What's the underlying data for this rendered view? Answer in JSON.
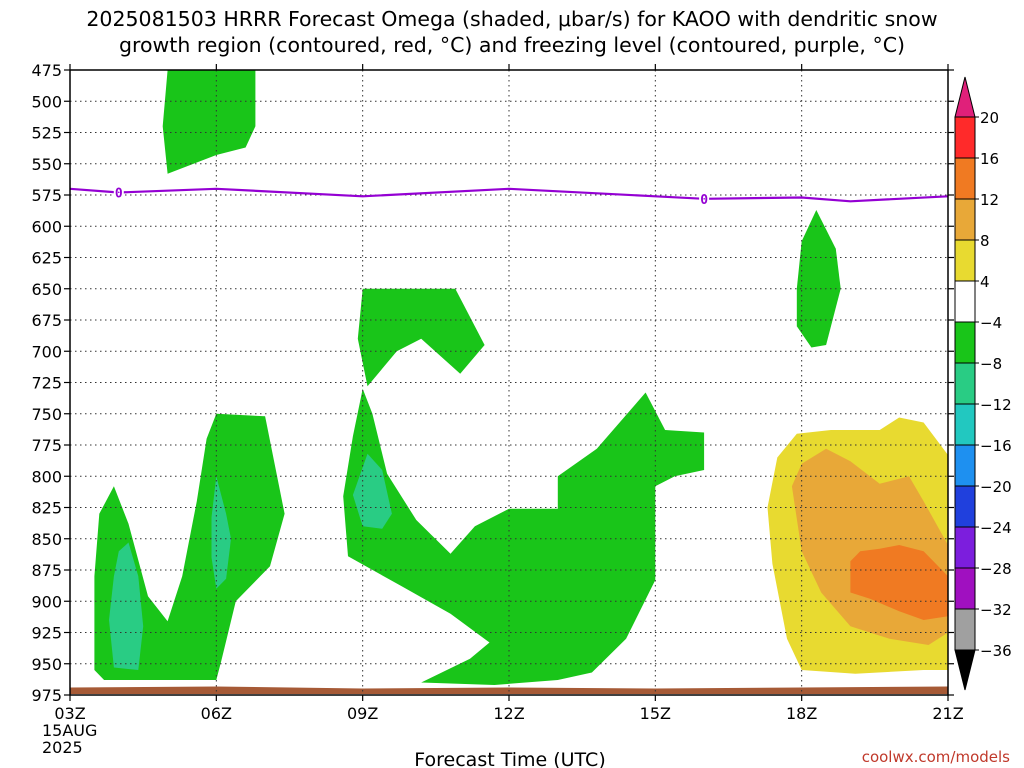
{
  "title_line1": "2025081503 HRRR Forecast Omega (shaded, μbar/s) for KAOO with dendritic snow",
  "title_line2": "growth region (contoured, red, °C) and freezing level (contoured, purple, °C)",
  "credit": "coolwx.com/models",
  "chart_data": {
    "type": "area",
    "title": "2025081503 HRRR Forecast Omega (shaded, μbar/s) for KAOO with dendritic snow growth region (contoured, red, °C) and freezing level (contoured, purple, °C)",
    "xlabel": "Forecast Time (UTC)",
    "ylabel": "",
    "x_hours": [
      3,
      21
    ],
    "x_ticks": [
      {
        "hour": 3,
        "label": "03Z",
        "sub": [
          "15AUG",
          "2025"
        ]
      },
      {
        "hour": 6,
        "label": "06Z"
      },
      {
        "hour": 9,
        "label": "09Z"
      },
      {
        "hour": 12,
        "label": "12Z"
      },
      {
        "hour": 15,
        "label": "15Z"
      },
      {
        "hour": 18,
        "label": "18Z"
      },
      {
        "hour": 21,
        "label": "21Z"
      }
    ],
    "y_reversed": true,
    "ylim": [
      975,
      475
    ],
    "y_ticks": [
      475,
      500,
      525,
      550,
      575,
      600,
      625,
      650,
      675,
      700,
      725,
      750,
      775,
      800,
      825,
      850,
      875,
      900,
      925,
      950,
      975
    ],
    "grid": true,
    "colorbar": {
      "labels": [
        "20",
        "16",
        "12",
        "8",
        "4",
        "−4",
        "−8",
        "−12",
        "−16",
        "−20",
        "−24",
        "−28",
        "−32",
        "−36"
      ],
      "colors": [
        "#ff2a2a",
        "#f07a22",
        "#e8a838",
        "#e8da30",
        "#ffffff",
        "#19c519",
        "#29cc84",
        "#22c8c0",
        "#1e90f0",
        "#2040dd",
        "#7c1edd",
        "#a010c0",
        "#a0a0a0"
      ],
      "top_color": "#e0207a",
      "bottom_color": "#000000"
    },
    "freezing_level": {
      "label": "0",
      "color": "#9400d3",
      "points": [
        [
          3.0,
          570
        ],
        [
          4.0,
          573
        ],
        [
          6.0,
          570
        ],
        [
          9.0,
          576
        ],
        [
          12.0,
          570
        ],
        [
          15.0,
          576
        ],
        [
          16.0,
          578
        ],
        [
          18.0,
          577
        ],
        [
          19.0,
          580
        ],
        [
          21.0,
          576
        ]
      ],
      "label_at_hours": [
        4.0,
        16.0
      ]
    },
    "surface": {
      "color": "#a65a36",
      "top_hpa": 969
    },
    "regions": [
      {
        "name": "green-upper",
        "color": "#19c519",
        "points": [
          [
            5.0,
            475
          ],
          [
            6.8,
            475
          ],
          [
            6.8,
            520
          ],
          [
            6.6,
            537
          ],
          [
            6.0,
            543
          ],
          [
            5.0,
            558
          ],
          [
            4.9,
            520
          ]
        ]
      },
      {
        "name": "green-mid",
        "color": "#19c519",
        "points": [
          [
            9.0,
            650
          ],
          [
            10.9,
            650
          ],
          [
            11.5,
            695
          ],
          [
            11.0,
            718
          ],
          [
            10.2,
            690
          ],
          [
            9.7,
            700
          ],
          [
            9.1,
            728
          ],
          [
            8.9,
            690
          ]
        ]
      },
      {
        "name": "green-18z",
        "color": "#19c519",
        "points": [
          [
            17.9,
            650
          ],
          [
            18.0,
            612
          ],
          [
            18.3,
            587
          ],
          [
            18.7,
            618
          ],
          [
            18.8,
            650
          ],
          [
            18.5,
            695
          ],
          [
            18.2,
            697
          ],
          [
            17.9,
            680
          ]
        ]
      },
      {
        "name": "green-left",
        "color": "#19c519",
        "points": [
          [
            3.5,
            955
          ],
          [
            3.5,
            880
          ],
          [
            3.6,
            830
          ],
          [
            3.9,
            808
          ],
          [
            4.2,
            838
          ],
          [
            4.6,
            896
          ],
          [
            5.0,
            916
          ],
          [
            5.3,
            880
          ],
          [
            5.6,
            820
          ],
          [
            5.8,
            770
          ],
          [
            6.0,
            750
          ],
          [
            7.0,
            752
          ],
          [
            7.4,
            830
          ],
          [
            7.1,
            872
          ],
          [
            6.4,
            900
          ],
          [
            6.1,
            948
          ],
          [
            6.0,
            963
          ],
          [
            3.7,
            963
          ]
        ]
      },
      {
        "name": "green-center",
        "color": "#19c519",
        "points": [
          [
            9.0,
            730
          ],
          [
            9.2,
            750
          ],
          [
            9.5,
            798
          ],
          [
            10.1,
            835
          ],
          [
            10.8,
            862
          ],
          [
            11.3,
            840
          ],
          [
            12.0,
            826
          ],
          [
            13.0,
            826
          ],
          [
            13.0,
            800
          ],
          [
            13.8,
            778
          ],
          [
            14.8,
            733
          ],
          [
            15.2,
            763
          ],
          [
            16.0,
            765
          ],
          [
            16.0,
            795
          ],
          [
            15.4,
            800
          ],
          [
            15.0,
            808
          ],
          [
            15.0,
            883
          ],
          [
            14.4,
            930
          ],
          [
            13.7,
            957
          ],
          [
            13.0,
            963
          ],
          [
            11.7,
            967
          ],
          [
            10.2,
            965
          ],
          [
            11.2,
            946
          ],
          [
            11.6,
            933
          ],
          [
            10.8,
            910
          ],
          [
            9.8,
            888
          ],
          [
            8.7,
            864
          ],
          [
            8.6,
            816
          ],
          [
            8.8,
            768
          ]
        ]
      },
      {
        "name": "teal-left",
        "color": "#29cc84",
        "points": [
          [
            4.2,
            853
          ],
          [
            4.4,
            880
          ],
          [
            4.5,
            920
          ],
          [
            4.4,
            955
          ],
          [
            3.9,
            953
          ],
          [
            3.8,
            915
          ],
          [
            3.9,
            880
          ],
          [
            4.0,
            860
          ]
        ]
      },
      {
        "name": "teal-06z",
        "color": "#29cc84",
        "points": [
          [
            6.0,
            800
          ],
          [
            6.2,
            830
          ],
          [
            6.3,
            850
          ],
          [
            6.2,
            882
          ],
          [
            6.0,
            890
          ],
          [
            5.9,
            865
          ],
          [
            5.9,
            833
          ]
        ]
      },
      {
        "name": "teal-09z",
        "color": "#29cc84",
        "points": [
          [
            9.1,
            782
          ],
          [
            9.4,
            795
          ],
          [
            9.6,
            830
          ],
          [
            9.4,
            842
          ],
          [
            9.0,
            840
          ],
          [
            8.8,
            815
          ]
        ]
      },
      {
        "name": "yellow-right",
        "color": "#e8da30",
        "points": [
          [
            17.3,
            825
          ],
          [
            17.5,
            785
          ],
          [
            17.9,
            766
          ],
          [
            18.6,
            763
          ],
          [
            19.6,
            763
          ],
          [
            20.0,
            753
          ],
          [
            20.5,
            757
          ],
          [
            21.0,
            783
          ],
          [
            21.0,
            955
          ],
          [
            20.5,
            955
          ],
          [
            19.1,
            958
          ],
          [
            18.0,
            955
          ],
          [
            17.7,
            930
          ],
          [
            17.4,
            870
          ]
        ]
      },
      {
        "name": "orange-light",
        "color": "#e8a838",
        "points": [
          [
            17.8,
            808
          ],
          [
            18.0,
            790
          ],
          [
            18.5,
            778
          ],
          [
            19.0,
            788
          ],
          [
            19.6,
            806
          ],
          [
            20.2,
            800
          ],
          [
            20.5,
            820
          ],
          [
            21.0,
            855
          ],
          [
            21.0,
            925
          ],
          [
            20.6,
            935
          ],
          [
            19.8,
            930
          ],
          [
            19.0,
            920
          ],
          [
            18.4,
            893
          ],
          [
            18.0,
            860
          ]
        ]
      },
      {
        "name": "orange-dark",
        "color": "#f07a22",
        "points": [
          [
            19.0,
            868
          ],
          [
            19.2,
            860
          ],
          [
            19.6,
            858
          ],
          [
            20.0,
            855
          ],
          [
            20.5,
            860
          ],
          [
            21.0,
            880
          ],
          [
            21.0,
            912
          ],
          [
            20.5,
            915
          ],
          [
            20.0,
            908
          ],
          [
            19.4,
            898
          ],
          [
            19.0,
            893
          ]
        ]
      }
    ]
  }
}
